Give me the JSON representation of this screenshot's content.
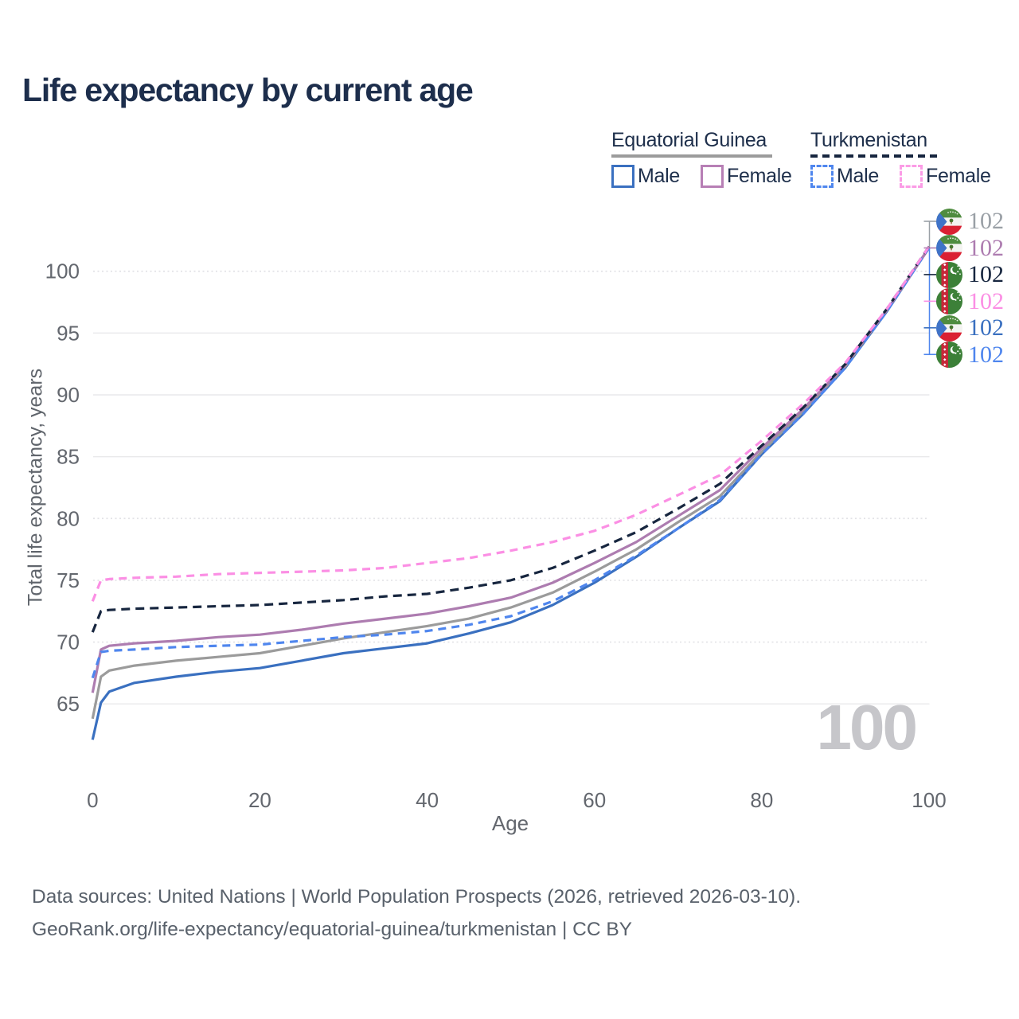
{
  "title": "Life expectancy by current age",
  "watermark": "100",
  "legend": {
    "groups": [
      {
        "name": "Equatorial Guinea",
        "line_style": "solid",
        "color": "#9b9b9b",
        "items": [
          {
            "label": "Male",
            "color": "#3a70c0",
            "dashed": false
          },
          {
            "label": "Female",
            "color": "#b77fb5",
            "dashed": false
          }
        ]
      },
      {
        "name": "Turkmenistan",
        "line_style": "dashed",
        "color": "#17263f",
        "items": [
          {
            "label": "Male",
            "color": "#4f86ee",
            "dashed": true
          },
          {
            "label": "Female",
            "color": "#fb9ce6",
            "dashed": true
          }
        ]
      }
    ]
  },
  "axes": {
    "x": {
      "title": "Age",
      "ticks": [
        0,
        20,
        40,
        60,
        80,
        100
      ],
      "range": [
        0,
        100
      ]
    },
    "y": {
      "title": "Total life expectancy, years",
      "range": [
        62,
        102
      ],
      "ticks": [
        {
          "value": 100,
          "dotted": true
        },
        {
          "value": 95,
          "dotted": false
        },
        {
          "value": 90,
          "dotted": false
        },
        {
          "value": 85,
          "dotted": false
        },
        {
          "value": 80,
          "dotted": true
        },
        {
          "value": 75,
          "dotted": true
        },
        {
          "value": 70,
          "dotted": true
        },
        {
          "value": 65,
          "dotted": false
        }
      ]
    }
  },
  "chart_data": {
    "type": "line",
    "title": "Life expectancy by current age",
    "xlabel": "Age",
    "ylabel": "Total life expectancy, years",
    "xlim": [
      0,
      100
    ],
    "ylim": [
      62,
      102
    ],
    "grid": "horizontal",
    "legend_position": "top-right",
    "x": [
      0,
      1,
      2,
      5,
      10,
      15,
      20,
      25,
      30,
      35,
      40,
      45,
      50,
      55,
      60,
      65,
      70,
      75,
      80,
      85,
      90,
      95,
      100
    ],
    "series": [
      {
        "id": "gq-male",
        "name": "Equatorial Guinea Male",
        "color": "#3a70c0",
        "dash": null,
        "values": [
          62.1,
          65.1,
          66.0,
          66.7,
          67.2,
          67.6,
          67.9,
          68.5,
          69.1,
          69.5,
          69.9,
          70.7,
          71.6,
          73.0,
          74.8,
          76.9,
          79.2,
          81.4,
          85.2,
          88.5,
          92.2,
          96.8,
          101.9
        ]
      },
      {
        "id": "gq-total",
        "name": "Equatorial Guinea Total",
        "color": "#9b9b9b",
        "dash": null,
        "values": [
          63.8,
          67.2,
          67.7,
          68.1,
          68.5,
          68.8,
          69.1,
          69.7,
          70.3,
          70.8,
          71.3,
          71.9,
          72.8,
          74.0,
          75.7,
          77.5,
          79.7,
          81.8,
          85.4,
          88.7,
          92.3,
          96.9,
          101.9
        ]
      },
      {
        "id": "gq-female",
        "name": "Equatorial Guinea Female",
        "color": "#ad7cb0",
        "dash": null,
        "values": [
          65.9,
          69.4,
          69.7,
          69.9,
          70.1,
          70.4,
          70.6,
          71.0,
          71.5,
          71.9,
          72.3,
          72.9,
          73.6,
          74.8,
          76.4,
          78.1,
          80.2,
          82.3,
          85.7,
          88.9,
          92.4,
          96.9,
          101.9
        ]
      },
      {
        "id": "tm-male",
        "name": "Turkmenistan Male",
        "color": "#4f86ee",
        "dash": "10 7",
        "values": [
          67.1,
          69.2,
          69.3,
          69.4,
          69.6,
          69.7,
          69.8,
          70.1,
          70.4,
          70.6,
          70.9,
          71.4,
          72.1,
          73.3,
          75.0,
          77.0,
          79.2,
          81.5,
          85.2,
          88.5,
          92.2,
          96.8,
          101.9
        ]
      },
      {
        "id": "tm-total",
        "name": "Turkmenistan Total",
        "color": "#17263f",
        "dash": "11 7",
        "values": [
          70.8,
          72.5,
          72.6,
          72.7,
          72.8,
          72.9,
          73.0,
          73.2,
          73.4,
          73.7,
          73.9,
          74.4,
          75.0,
          76.0,
          77.4,
          78.9,
          80.8,
          82.8,
          85.9,
          89.0,
          92.5,
          97.0,
          102.0
        ]
      },
      {
        "id": "tm-female",
        "name": "Turkmenistan Female",
        "color": "#fb8fe4",
        "dash": "10 7",
        "values": [
          73.3,
          75.0,
          75.1,
          75.2,
          75.3,
          75.5,
          75.6,
          75.7,
          75.8,
          76.0,
          76.4,
          76.8,
          77.4,
          78.1,
          79.0,
          80.3,
          81.9,
          83.5,
          86.3,
          89.3,
          92.6,
          97.0,
          102.0
        ]
      }
    ]
  },
  "right_labels": [
    {
      "id": "gq-total",
      "flag": "gq",
      "country": "Equatorial Guinea",
      "value": "102",
      "color": "#9aa0a6"
    },
    {
      "id": "gq-female",
      "flag": "gq",
      "country": "Equatorial Guinea",
      "value": "102",
      "color": "#ad7cb0"
    },
    {
      "id": "tm-total",
      "flag": "tm",
      "country": "Turkmenistan",
      "value": "102",
      "color": "#17263f"
    },
    {
      "id": "tm-female",
      "flag": "tm",
      "country": "Turkmenistan",
      "value": "102",
      "color": "#fb8fe4"
    },
    {
      "id": "gq-male",
      "flag": "gq",
      "country": "Equatorial Guinea",
      "value": "102",
      "color": "#3a70c0"
    },
    {
      "id": "tm-male",
      "flag": "tm",
      "country": "Turkmenistan",
      "value": "102",
      "color": "#4f86ee"
    }
  ],
  "footer": {
    "line1": "Data sources: United Nations | World Population Prospects (2026, retrieved 2026-03-10).",
    "line2": "GeoRank.org/life-expectancy/equatorial-guinea/turkmenistan | CC BY"
  }
}
